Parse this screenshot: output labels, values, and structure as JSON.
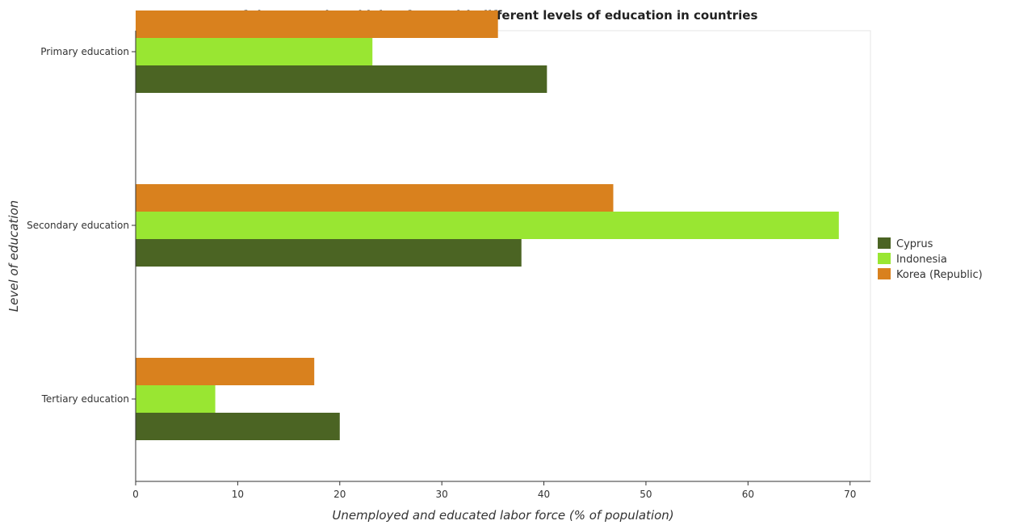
{
  "chart_data": {
    "type": "bar",
    "orientation": "horizontal",
    "title": "Percentage of the unemployed labor force with different levels of education in countries",
    "xlabel": "Unemployed and educated labor force (% of population)",
    "ylabel": "Level of education",
    "xlim": [
      0,
      72
    ],
    "xticks": [
      0,
      10,
      20,
      30,
      40,
      50,
      60,
      70
    ],
    "categories": [
      "Primary education",
      "Secondary education",
      "Tertiary education"
    ],
    "series": [
      {
        "name": "Cyprus",
        "color": "#4b6423",
        "values": [
          40.3,
          37.8,
          20.0
        ]
      },
      {
        "name": "Indonesia",
        "color": "#99e632",
        "values": [
          23.2,
          68.9,
          7.8
        ]
      },
      {
        "name": "Korea (Republic)",
        "color": "#d9811e",
        "values": [
          35.5,
          46.8,
          17.5
        ]
      }
    ],
    "legend_position": "right",
    "grid": false
  }
}
